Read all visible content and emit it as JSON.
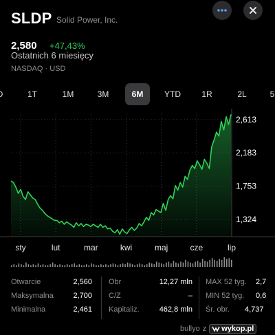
{
  "header": {
    "ticker": "SLDP",
    "company": "Solid Power, Inc.",
    "more_icon": "ellipsis-icon",
    "close_icon": "close-icon"
  },
  "quote": {
    "price": "2,580",
    "change": "+47,43%",
    "period": "Ostatnich 6 miesięcy",
    "exchange": "NASDAQ · USD"
  },
  "tabs": [
    {
      "label": "D"
    },
    {
      "label": "1T"
    },
    {
      "label": "1M"
    },
    {
      "label": "3M"
    },
    {
      "label": "6M",
      "active": true
    },
    {
      "label": "YTD"
    },
    {
      "label": "1R"
    },
    {
      "label": "2L"
    },
    {
      "label": "5"
    }
  ],
  "chart_data": {
    "type": "area",
    "x_labels": [
      "sty",
      "lut",
      "mar",
      "kwi",
      "maj",
      "cze",
      "lip"
    ],
    "y_ticks": [
      "2,613",
      "2,183",
      "1,753",
      "1,324"
    ],
    "y_tick_values": [
      2.613,
      2.183,
      1.753,
      1.324
    ],
    "ylim": [
      1.1,
      2.7
    ],
    "grid": true,
    "line_color": "#30d158",
    "values": [
      1.82,
      1.8,
      1.74,
      1.66,
      1.71,
      1.62,
      1.58,
      1.68,
      1.64,
      1.6,
      1.58,
      1.52,
      1.47,
      1.44,
      1.4,
      1.37,
      1.35,
      1.33,
      1.31,
      1.31,
      1.28,
      1.3,
      1.26,
      1.29,
      1.27,
      1.25,
      1.22,
      1.28,
      1.24,
      1.27,
      1.23,
      1.26,
      1.25,
      1.23,
      1.26,
      1.24,
      1.22,
      1.26,
      1.22,
      1.24,
      1.2,
      1.21,
      1.17,
      1.15,
      1.19,
      1.13,
      1.2,
      1.16,
      1.14,
      1.19,
      1.22,
      1.18,
      1.21,
      1.27,
      1.24,
      1.29,
      1.35,
      1.31,
      1.41,
      1.38,
      1.45,
      1.43,
      1.41,
      1.53,
      1.44,
      1.58,
      1.63,
      1.59,
      1.76,
      1.7,
      1.8,
      1.74,
      1.88,
      1.84,
      1.96,
      2.02,
      1.98,
      2.08,
      2.03,
      1.97,
      2.1,
      2.05,
      1.98,
      2.26,
      2.35,
      2.45,
      2.4,
      2.59,
      2.48,
      2.65,
      2.55,
      2.68
    ],
    "volume": [
      2,
      3,
      2,
      4,
      3,
      2,
      5,
      3,
      2,
      3,
      2,
      4,
      2,
      3,
      2,
      2,
      3,
      5,
      3,
      2,
      3,
      2,
      2,
      3,
      2,
      3,
      4,
      2,
      3,
      2,
      2,
      3,
      2,
      4,
      3,
      2,
      2,
      3,
      2,
      3,
      2,
      3,
      4,
      3,
      2,
      3,
      4,
      3,
      5,
      4,
      3,
      2,
      3,
      4,
      3,
      2,
      3,
      5,
      4,
      3,
      6,
      5,
      4,
      3,
      5,
      6,
      4,
      7,
      5,
      4,
      6,
      5,
      8,
      6,
      5,
      4,
      6,
      7,
      5,
      9,
      7,
      6,
      8,
      10,
      8,
      7,
      9,
      8,
      11,
      9,
      10,
      8
    ]
  },
  "stats": {
    "open_label": "Otwarcie",
    "open_value": "2,560",
    "high_label": "Maksymalna",
    "high_value": "2,700",
    "low_label": "Minimalna",
    "low_value": "2,461",
    "vol_label": "Obr",
    "vol_value": "12,27 mln",
    "pe_label": "C/Z",
    "pe_value": "–",
    "cap_label": "Kapitaliz.",
    "cap_value": "462,8 mln",
    "max52_label": "MAX 52 tyg.",
    "max52_value": "2,7",
    "min52_label": "MIN 52 tyg.",
    "min52_value": "0,6",
    "avgvol_label": "Śr. obr.",
    "avgvol_value": "4,737"
  },
  "watermark": {
    "user": "bullyo",
    "z": "z",
    "logo_text": "wykop.pl"
  }
}
